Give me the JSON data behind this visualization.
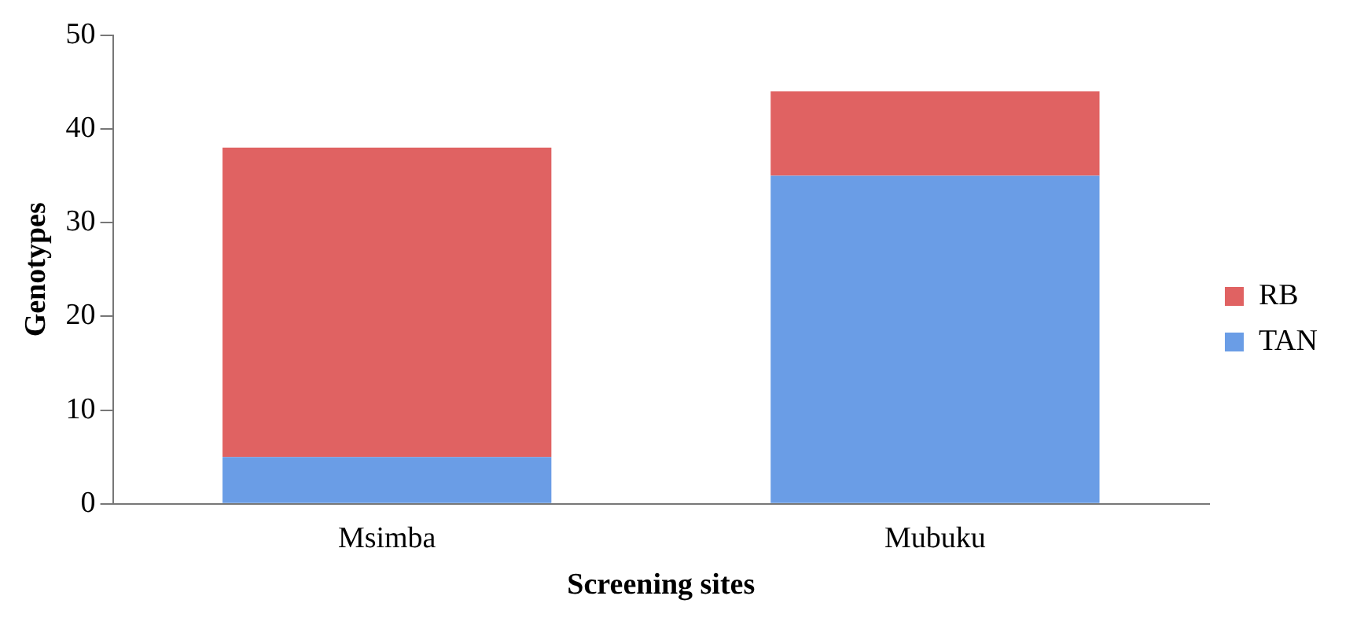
{
  "chart_data": {
    "type": "bar",
    "stacked": true,
    "xlabel": "Screening sites",
    "ylabel": "Genotypes",
    "categories": [
      "Msimba",
      "Mubuku"
    ],
    "series": [
      {
        "name": "TAN",
        "color": "#6a9de6",
        "values": [
          5,
          35
        ]
      },
      {
        "name": "RB",
        "color": "#e06262",
        "values": [
          33,
          9
        ]
      }
    ],
    "ylim": [
      0,
      50
    ],
    "yticks": [
      0,
      10,
      20,
      30,
      40,
      50
    ],
    "grid": false,
    "legend": "right"
  }
}
